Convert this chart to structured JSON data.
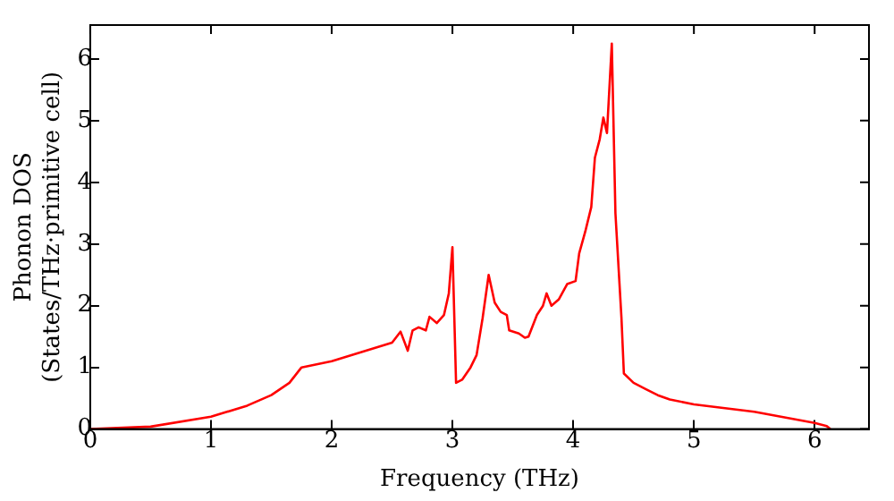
{
  "chart_data": {
    "type": "line",
    "xlabel": "Frequency (THz)",
    "ylabel": "Phonon DOS\n(States/THz·primitive cell)",
    "xlim": [
      0,
      6.45
    ],
    "ylim": [
      0,
      6.55
    ],
    "xticks": [
      0,
      1,
      2,
      3,
      4,
      5,
      6
    ],
    "yticks": [
      0,
      1,
      2,
      3,
      4,
      5,
      6
    ],
    "grid": false,
    "legend": false,
    "marker": "none",
    "line_style": "solid",
    "x": [
      0,
      0.5,
      1,
      1.3,
      1.5,
      1.65,
      1.75,
      2.0,
      2.5,
      2.57,
      2.63,
      2.67,
      2.72,
      2.78,
      2.81,
      2.87,
      2.93,
      2.97,
      3.0,
      3.03,
      3.08,
      3.15,
      3.2,
      3.25,
      3.3,
      3.35,
      3.4,
      3.45,
      3.47,
      3.55,
      3.6,
      3.63,
      3.7,
      3.75,
      3.78,
      3.82,
      3.88,
      3.95,
      4.02,
      4.05,
      4.1,
      4.15,
      4.18,
      4.22,
      4.25,
      4.28,
      4.32,
      4.35,
      4.4,
      4.42,
      4.5,
      4.6,
      4.7,
      4.8,
      5.0,
      5.5,
      6.0,
      6.1,
      6.13
    ],
    "series": [
      {
        "color": "#ff0000",
        "values": [
          0,
          0.04,
          0.2,
          0.38,
          0.55,
          0.75,
          1.0,
          1.1,
          1.4,
          1.58,
          1.27,
          1.6,
          1.65,
          1.6,
          1.82,
          1.72,
          1.85,
          2.2,
          2.95,
          0.75,
          0.8,
          1.0,
          1.2,
          1.8,
          2.5,
          2.05,
          1.9,
          1.85,
          1.6,
          1.55,
          1.48,
          1.5,
          1.85,
          2.0,
          2.2,
          2.0,
          2.1,
          2.35,
          2.4,
          2.85,
          3.2,
          3.6,
          4.4,
          4.7,
          5.05,
          4.8,
          6.25,
          3.5,
          1.8,
          0.9,
          0.75,
          0.65,
          0.55,
          0.48,
          0.4,
          0.28,
          0.1,
          0.05,
          0
        ]
      }
    ]
  }
}
